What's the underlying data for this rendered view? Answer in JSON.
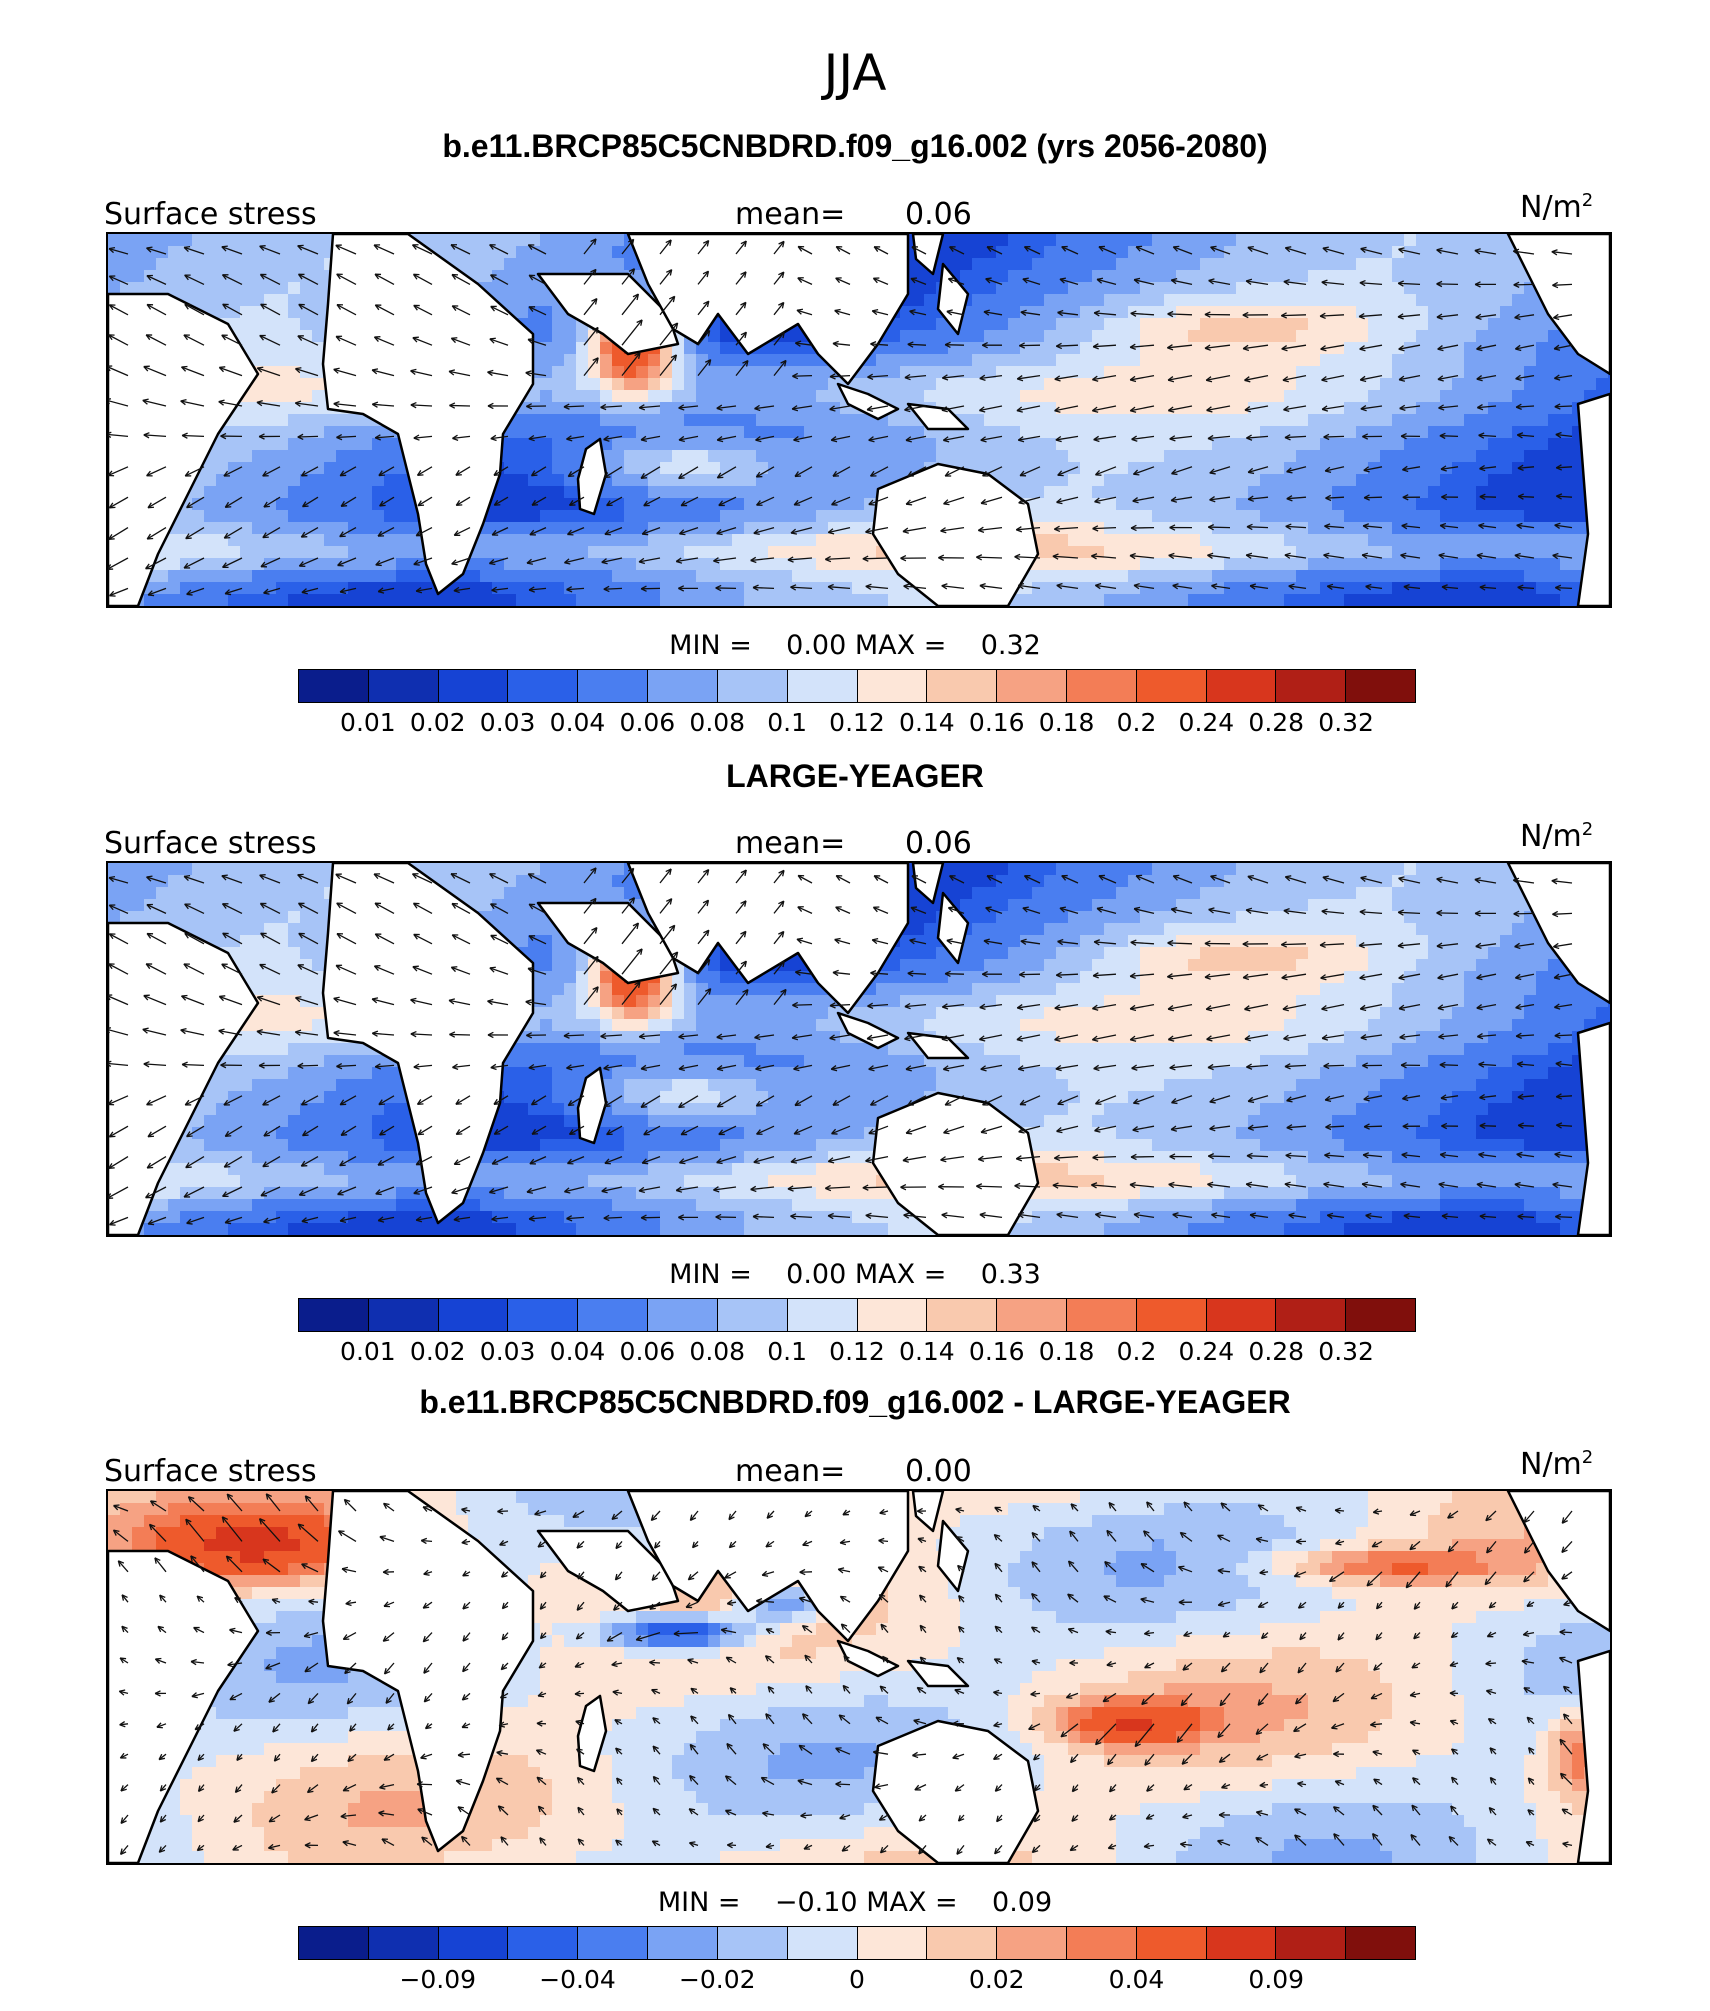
{
  "title": "JJA",
  "palette": [
    "#0a1d8c",
    "#0f2fb0",
    "#1643d4",
    "#2a60e8",
    "#4a7ef0",
    "#7aa3f4",
    "#a7c4f7",
    "#d3e3fa",
    "#fde6d8",
    "#f9c9ae",
    "#f6a283",
    "#f37d56",
    "#ee5a2c",
    "#d8361d",
    "#b01f16",
    "#800f0c"
  ],
  "panels": [
    {
      "title": "b.e11.BRCP85C5CNBDRD.f09_g16.002 (yrs 2056-2080)",
      "left_label": "Surface stress",
      "mean_label": "mean=",
      "mean_value": "0.06",
      "units": "N/m",
      "units_sup": "2",
      "min_label": "MIN =",
      "min_value": "0.00",
      "max_label": "MAX =",
      "max_value": "0.32",
      "ticks": [
        "0.01",
        "0.02",
        "0.03",
        "0.04",
        "0.06",
        "0.08",
        "0.1",
        "0.12",
        "0.14",
        "0.16",
        "0.18",
        "0.2",
        "0.24",
        "0.28",
        "0.32"
      ],
      "field": "abs"
    },
    {
      "title": "LARGE-YEAGER",
      "left_label": "Surface stress",
      "mean_label": "mean=",
      "mean_value": "0.06",
      "units": "N/m",
      "units_sup": "2",
      "min_label": "MIN =",
      "min_value": "0.00",
      "max_label": "MAX =",
      "max_value": "0.33",
      "ticks": [
        "0.01",
        "0.02",
        "0.03",
        "0.04",
        "0.06",
        "0.08",
        "0.1",
        "0.12",
        "0.14",
        "0.16",
        "0.18",
        "0.2",
        "0.24",
        "0.28",
        "0.32"
      ],
      "field": "abs"
    },
    {
      "title": "b.e11.BRCP85C5CNBDRD.f09_g16.002 - LARGE-YEAGER",
      "left_label": "Surface stress",
      "mean_label": "mean=",
      "mean_value": "0.00",
      "units": "N/m",
      "units_sup": "2",
      "min_label": "MIN =",
      "min_value": "−0.10",
      "max_label": "MAX =",
      "max_value": "0.09",
      "ticks": [
        "",
        "−0.09",
        "",
        "−0.04",
        "",
        "−0.02",
        "",
        "0",
        "",
        "0.02",
        "",
        "0.04",
        "",
        "0.09",
        ""
      ],
      "field": "diff"
    }
  ]
}
